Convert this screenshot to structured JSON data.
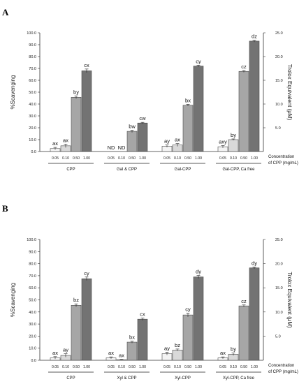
{
  "figure": {
    "panel_letters": [
      "A",
      "B"
    ],
    "left_axis_label": "%Scavenging",
    "right_axis_label": "Trolox Equivalent (μM)",
    "concentration_label_line1": "Concentration",
    "concentration_label_line2": "of CPP (mg/mL)",
    "bar_colors": [
      "#f4f4f4",
      "#d9d9d9",
      "#a6a6a6",
      "#737373"
    ]
  },
  "chart_data": [
    {
      "type": "bar",
      "panel": "A",
      "ylim": [
        0,
        100
      ],
      "yticks": [
        "0.0",
        "10.0",
        "20.0",
        "30.0",
        "40.0",
        "50.0",
        "60.0",
        "70.0",
        "80.0",
        "90.0",
        "100.0"
      ],
      "y2ticks": [
        "5.0",
        "10.0",
        "15.0",
        "20.0",
        "25.0"
      ],
      "ylabel": "%Scavenging",
      "y2label": "Trolox Equivalent (μM)",
      "x_ticks": [
        "0.05",
        "0.10",
        "0.50",
        "1.00"
      ],
      "groups": [
        {
          "name": "CPP",
          "values": [
            2.5,
            4.8,
            45.7,
            68.0
          ],
          "errors": [
            1.0,
            1.5,
            1.2,
            1.5
          ],
          "labels": [
            "ax",
            "ax",
            "by",
            "cx"
          ]
        },
        {
          "name": "Gal & CPP",
          "values": [
            0,
            0,
            17.0,
            24.0
          ],
          "errors": [
            0,
            0,
            1.0,
            0.6
          ],
          "labels": [
            "ND",
            "ND",
            "bw",
            "cw"
          ]
        },
        {
          "name": "Gal-CPP",
          "values": [
            4.5,
            5.5,
            39.0,
            72.0
          ],
          "errors": [
            1.0,
            1.2,
            0.8,
            0.7
          ],
          "labels": [
            "ay",
            "ax",
            "bx",
            "cy"
          ]
        },
        {
          "name": "Gal-CPP, Ca free",
          "values": [
            4.0,
            10.0,
            67.5,
            93.0
          ],
          "errors": [
            1.0,
            0.6,
            0.8,
            0.8
          ],
          "labels": [
            "axy",
            "by",
            "cz",
            "dz"
          ]
        }
      ]
    },
    {
      "type": "bar",
      "panel": "B",
      "ylim": [
        0,
        100
      ],
      "yticks": [
        "0.0",
        "10.0",
        "20.0",
        "30.0",
        "40.0",
        "50.0",
        "60.0",
        "70.0",
        "80.0",
        "90.0",
        "100.0"
      ],
      "y2ticks": [
        "5.0",
        "10.0",
        "15.0",
        "20.0",
        "25.0"
      ],
      "ylabel": "%Scavenging",
      "y2label": "Trolox Equivalent (μM)",
      "x_ticks": [
        "0.05",
        "0.10",
        "0.50",
        "1.00"
      ],
      "groups": [
        {
          "name": "CPP",
          "values": [
            2.0,
            4.0,
            45.5,
            67.5
          ],
          "errors": [
            1.0,
            1.4,
            1.2,
            1.4
          ],
          "labels": [
            "ax",
            "ay",
            "bz",
            "cy"
          ]
        },
        {
          "name": "Xyl & CPP",
          "values": [
            2.0,
            0.5,
            15.0,
            34.0
          ],
          "errors": [
            0.8,
            0.3,
            0.8,
            1.0
          ],
          "labels": [
            "ax",
            "ax",
            "bx",
            "cx"
          ]
        },
        {
          "name": "Xyl-CPP",
          "values": [
            5.5,
            8.5,
            37.5,
            69.0
          ],
          "errors": [
            1.2,
            0.8,
            1.6,
            1.2
          ],
          "labels": [
            "ay",
            "bz",
            "cy",
            "dy"
          ]
        },
        {
          "name": "Xyl-CPP, Ca free",
          "values": [
            2.0,
            5.0,
            45.0,
            76.5
          ],
          "errors": [
            0.8,
            1.0,
            0.8,
            0.8
          ],
          "labels": [
            "ax",
            "by",
            "cz",
            "dy"
          ]
        }
      ]
    }
  ]
}
